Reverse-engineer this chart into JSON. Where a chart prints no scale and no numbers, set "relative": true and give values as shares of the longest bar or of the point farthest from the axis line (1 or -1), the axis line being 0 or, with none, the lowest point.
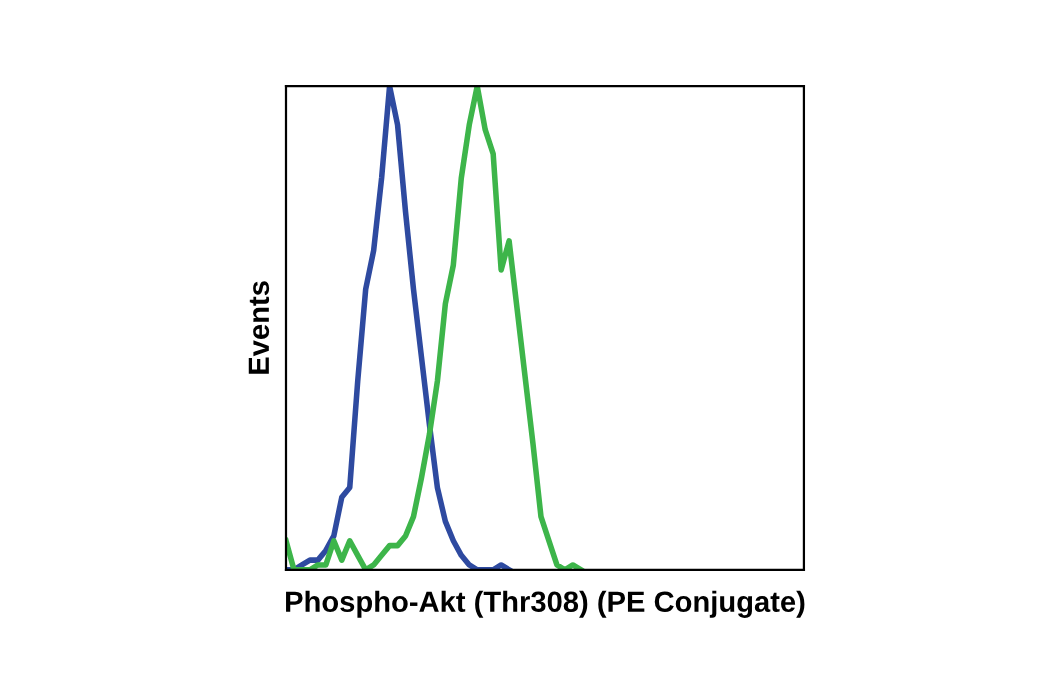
{
  "chart_data": {
    "type": "line",
    "xlabel": "Phospho-Akt (Thr308) (PE Conjugate)",
    "ylabel": "Events",
    "relative": true,
    "grid": false,
    "marker": "none",
    "line_style": "solid",
    "categories": [
      null,
      null,
      null,
      null,
      null,
      null,
      null,
      null,
      null,
      null,
      null,
      null,
      null,
      null,
      null,
      null,
      null,
      null,
      null,
      null,
      null,
      null,
      null,
      null,
      null,
      null,
      null,
      null,
      null,
      null,
      null,
      null,
      null,
      null,
      null,
      null,
      null,
      null,
      null,
      null,
      null,
      null,
      null,
      null,
      null,
      null,
      null,
      null,
      null,
      null,
      null,
      null,
      null,
      null,
      null,
      null,
      null,
      null,
      null,
      null,
      null,
      null,
      null,
      null,
      null,
      null
    ],
    "series": [
      {
        "color": "#2e4aa0",
        "values": [
          0,
          0,
          0.01,
          0.02,
          0.02,
          0.04,
          0.07,
          0.15,
          0.17,
          0.39,
          0.58,
          0.66,
          0.81,
          1.0,
          0.92,
          0.74,
          0.58,
          0.44,
          0.3,
          0.17,
          0.1,
          0.06,
          0.03,
          0.01,
          0,
          0,
          0,
          0.01,
          0,
          null,
          null,
          null,
          null,
          null,
          null,
          null,
          null,
          null,
          null,
          null,
          null,
          null,
          null,
          null,
          null,
          null,
          null,
          null,
          null,
          null,
          null,
          null,
          null,
          null,
          null,
          null,
          null,
          null,
          null,
          null,
          null,
          null,
          null,
          null,
          null,
          null
        ]
      },
      {
        "color": "#3db54a",
        "values": [
          0.06,
          0,
          0,
          0,
          0.01,
          0.01,
          0.06,
          0.02,
          0.06,
          0.03,
          0,
          0.01,
          0.03,
          0.05,
          0.05,
          0.07,
          0.11,
          0.19,
          0.28,
          0.39,
          0.55,
          0.63,
          0.81,
          0.92,
          1.0,
          0.91,
          0.86,
          0.62,
          0.68,
          0.54,
          0.4,
          0.26,
          0.11,
          0.06,
          0.01,
          0,
          0.01,
          0,
          null,
          null,
          null,
          null,
          null,
          null,
          null,
          null,
          null,
          null,
          null,
          null,
          null,
          null,
          null,
          null,
          null,
          null,
          null,
          null,
          null,
          null,
          null,
          null,
          null,
          null,
          null,
          null
        ]
      }
    ]
  }
}
